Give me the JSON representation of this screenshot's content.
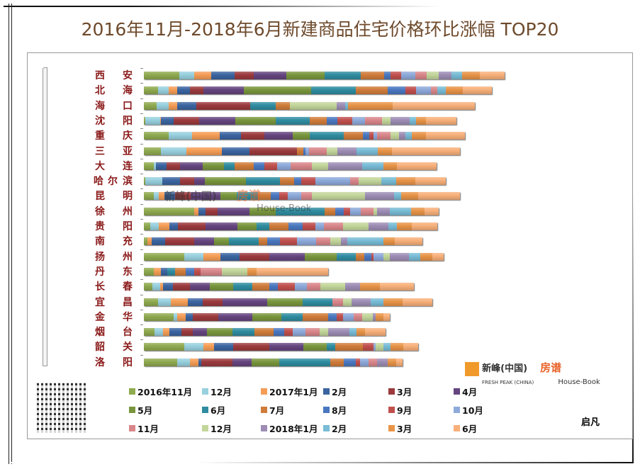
{
  "title": "2016年11月-2018年6月新建商品住宅价格环比涨幅 TOP20",
  "signature": "启凡",
  "watermark": {
    "brand1": "新峰(中国)",
    "brand1_en": "FRESH PEAK (CHINA)",
    "brand2": "房谱",
    "brand2_en": "House-Book"
  },
  "chart_data": {
    "type": "bar",
    "orientation": "horizontal",
    "stacked": true,
    "title": "2016年11月-2018年6月新建商品住宅价格环比涨幅 TOP20",
    "legend_position": "bottom",
    "grid": false,
    "axis_ticks_labels": false,
    "categories": [
      "西安",
      "北海",
      "海口",
      "沈阳",
      "重庆",
      "三亚",
      "大连",
      "哈尔滨",
      "昆明",
      "徐州",
      "贵阳",
      "南充",
      "扬州",
      "丹东",
      "长春",
      "宜昌",
      "金华",
      "烟台",
      "韶关",
      "洛阳"
    ],
    "series": [
      {
        "name": "2016年11月",
        "color": "#8faa4f",
        "values": [
          3.3,
          1.3,
          1.2,
          0.1,
          2.3,
          1.6,
          0.9,
          0.1,
          0.9,
          4.7,
          0.6,
          0.3,
          3.8,
          0.9,
          0.8,
          1.3,
          2.8,
          1.0,
          3.8,
          3.1
        ]
      },
      {
        "name": "12月",
        "color": "#98d0de",
        "values": [
          1.4,
          1.0,
          1.1,
          1.4,
          2.2,
          2.4,
          0.2,
          1.6,
          0.5,
          0,
          0.8,
          0,
          1.8,
          0,
          0.7,
          1.2,
          0.3,
          0.8,
          1.8,
          1.2
        ]
      },
      {
        "name": "2017年1月",
        "color": "#f59d56",
        "values": [
          1.6,
          0.8,
          0.8,
          0.1,
          2.6,
          3.3,
          0,
          0,
          0.5,
          0.4,
          1.0,
          0.4,
          1.6,
          0.7,
          0.3,
          1.6,
          0.8,
          0.6,
          1.0,
          0.8
        ]
      },
      {
        "name": "2月",
        "color": "#3b64a0",
        "values": [
          2.2,
          1.2,
          1.8,
          1.2,
          2.0,
          2.6,
          1.0,
          1.7,
          1.0,
          0.7,
          0.8,
          1.3,
          1.8,
          0.6,
          0.9,
          1.4,
          0.7,
          1.1,
          1.8,
          0.3
        ]
      },
      {
        "name": "3月",
        "color": "#9b3a3d",
        "values": [
          1.8,
          1.3,
          5.1,
          2.4,
          2.2,
          4.5,
          1.3,
          1.3,
          1.5,
          1.1,
          2.6,
          2.7,
          2.8,
          0,
          1.6,
          1.9,
          2.4,
          1.1,
          3.4,
          2.9
        ]
      },
      {
        "name": "4月",
        "color": "#65457f",
        "values": [
          3.1,
          3.8,
          0,
          3.4,
          2.7,
          0,
          2.1,
          1.0,
          2.8,
          3.0,
          3.0,
          1.9,
          3.3,
          0,
          1.9,
          4.2,
          3.2,
          1.3,
          3.2,
          1.8
        ]
      },
      {
        "name": "5月",
        "color": "#79963d",
        "values": [
          3.6,
          6.3,
          0,
          3.8,
          1.6,
          0,
          2.0,
          3.9,
          1.5,
          2.5,
          1.8,
          1.4,
          3.0,
          0,
          2.2,
          3.3,
          2.7,
          2.4,
          2.2,
          2.6
        ]
      },
      {
        "name": "6月",
        "color": "#2f8ca0",
        "values": [
          3.4,
          4.2,
          2.4,
          3.2,
          3.2,
          0,
          1.0,
          3.2,
          2.0,
          4.6,
          1.2,
          2.8,
          1.8,
          0.7,
          1.8,
          2.8,
          2.0,
          2.1,
          0.8,
          4.8
        ]
      },
      {
        "name": "7月",
        "color": "#d07c3a",
        "values": [
          2.2,
          3.0,
          1.3,
          1.6,
          1.8,
          0.6,
          1.8,
          1.3,
          1.2,
          1.0,
          1.8,
          0.8,
          0.8,
          1.0,
          1.6,
          0,
          2.4,
          1.8,
          2.6,
          1.3
        ]
      },
      {
        "name": "8月",
        "color": "#4a78c0",
        "values": [
          0.6,
          1.7,
          0,
          1.0,
          0.6,
          0.2,
          1.0,
          0.7,
          0.8,
          0.8,
          1.3,
          1.2,
          0.7,
          0.8,
          0.8,
          0,
          0.8,
          1.0,
          0,
          1.1
        ]
      },
      {
        "name": "9月",
        "color": "#c0504d",
        "values": [
          1.0,
          1.0,
          0,
          1.4,
          0.4,
          0,
          1.2,
          1.3,
          0.8,
          0.6,
          1.2,
          1.6,
          0.2,
          0.6,
          1.6,
          0,
          0.6,
          0.8,
          1.0,
          0.4
        ]
      },
      {
        "name": "10月",
        "color": "#8eaadb",
        "values": [
          1.3,
          1.4,
          0,
          1.2,
          0.3,
          0.3,
          1.3,
          3.3,
          1.3,
          1.0,
          0.8,
          1.8,
          0.9,
          0,
          1.1,
          0,
          1.0,
          1.2,
          0.2,
          0.8
        ]
      },
      {
        "name": "11月",
        "color": "#d9868a",
        "values": [
          1.1,
          0.6,
          0,
          1.6,
          1.3,
          1.7,
          2.0,
          0.8,
          1.0,
          1.2,
          1.8,
          1.3,
          0,
          2.0,
          1.3,
          1.0,
          0.8,
          1.3,
          0,
          0.8
        ]
      },
      {
        "name": "12月",
        "color": "#c3d69b",
        "values": [
          1.1,
          0,
          4.4,
          0.8,
          0.8,
          1.0,
          1.5,
          2.1,
          5.0,
          0.3,
          2.4,
          1.0,
          0.6,
          2.4,
          2.3,
          0.8,
          1.0,
          0.8,
          0.7,
          0
        ]
      },
      {
        "name": "2018年1月",
        "color": "#9d8db5",
        "values": [
          1.2,
          0,
          0.8,
          1.8,
          0.6,
          1.8,
          3.2,
          0,
          2.7,
          1.2,
          1.9,
          0.6,
          1.8,
          0,
          1.4,
          1.8,
          0.3,
          2.0,
          0,
          1.0
        ]
      },
      {
        "name": "2月",
        "color": "#78bcd6",
        "values": [
          1.0,
          0.8,
          0.3,
          0.6,
          0.6,
          2.0,
          2.0,
          1.4,
          0.7,
          2.0,
          0.8,
          3.4,
          1.1,
          0,
          0,
          1.2,
          0,
          0.7,
          0.7,
          0
        ]
      },
      {
        "name": "3月",
        "color": "#e89448",
        "values": [
          1.7,
          1.6,
          4.2,
          0.9,
          1.3,
          1.3,
          1.3,
          1.8,
          1.6,
          1.3,
          1.4,
          1.1,
          1.1,
          0.9,
          1.9,
          1.8,
          0.7,
          0.8,
          1.2,
          0.8
        ]
      },
      {
        "name": "6月",
        "color": "#f8b07a",
        "values": [
          2.3,
          2.7,
          7.7,
          2.9,
          3.7,
          6.4,
          3.7,
          2.9,
          3.9,
          1.3,
          2.4,
          2.6,
          1.1,
          6.7,
          3.2,
          2.8,
          0.6,
          1.9,
          1.4,
          0.6
        ]
      }
    ]
  }
}
